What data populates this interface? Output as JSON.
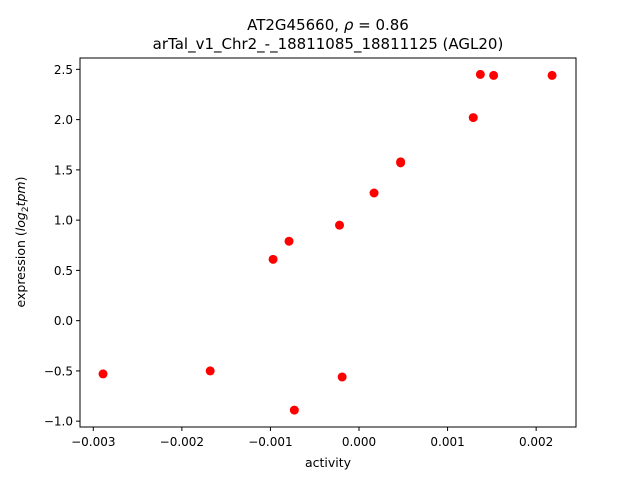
{
  "chart_data": {
    "type": "scatter",
    "title_line1_prefix": "AT2G45660, ",
    "title_rho_symbol": "ρ",
    "title_rho_value": " = 0.86",
    "title_line2": "arTal_v1_Chr2_-_18811085_18811125 (AGL20)",
    "xlabel": "activity",
    "ylabel_prefix": "expression (",
    "ylabel_math_log": "log",
    "ylabel_math_sub": "2",
    "ylabel_math_tpm": "tpm",
    "ylabel_suffix": ")",
    "xlim": [
      -0.00315,
      0.00245
    ],
    "ylim": [
      -1.058,
      2.613
    ],
    "x_ticks": [
      {
        "value": -0.003,
        "label": "−0.003"
      },
      {
        "value": -0.002,
        "label": "−0.002"
      },
      {
        "value": -0.001,
        "label": "−0.001"
      },
      {
        "value": 0.0,
        "label": "0.000"
      },
      {
        "value": 0.001,
        "label": "0.001"
      },
      {
        "value": 0.002,
        "label": "0.002"
      }
    ],
    "y_ticks": [
      {
        "value": -1.0,
        "label": "−1.0"
      },
      {
        "value": -0.5,
        "label": "−0.5"
      },
      {
        "value": 0.0,
        "label": "0.0"
      },
      {
        "value": 0.5,
        "label": "0.5"
      },
      {
        "value": 1.0,
        "label": "1.0"
      },
      {
        "value": 1.5,
        "label": "1.5"
      },
      {
        "value": 2.0,
        "label": "2.0"
      },
      {
        "value": 2.5,
        "label": "2.5"
      }
    ],
    "grid": false,
    "marker_color": "#ff0000",
    "points": [
      {
        "x": -0.00289,
        "y": -0.53
      },
      {
        "x": -0.00168,
        "y": -0.5
      },
      {
        "x": -0.00097,
        "y": 0.61
      },
      {
        "x": -0.00079,
        "y": 0.79
      },
      {
        "x": -0.00073,
        "y": -0.89
      },
      {
        "x": -0.00022,
        "y": 0.95
      },
      {
        "x": -0.00019,
        "y": -0.56
      },
      {
        "x": 0.00017,
        "y": 1.27
      },
      {
        "x": 0.00047,
        "y": 1.57
      },
      {
        "x": 0.00047,
        "y": 1.58
      },
      {
        "x": 0.00129,
        "y": 2.02
      },
      {
        "x": 0.00137,
        "y": 2.45
      },
      {
        "x": 0.00152,
        "y": 2.44
      },
      {
        "x": 0.00218,
        "y": 2.44
      }
    ]
  }
}
